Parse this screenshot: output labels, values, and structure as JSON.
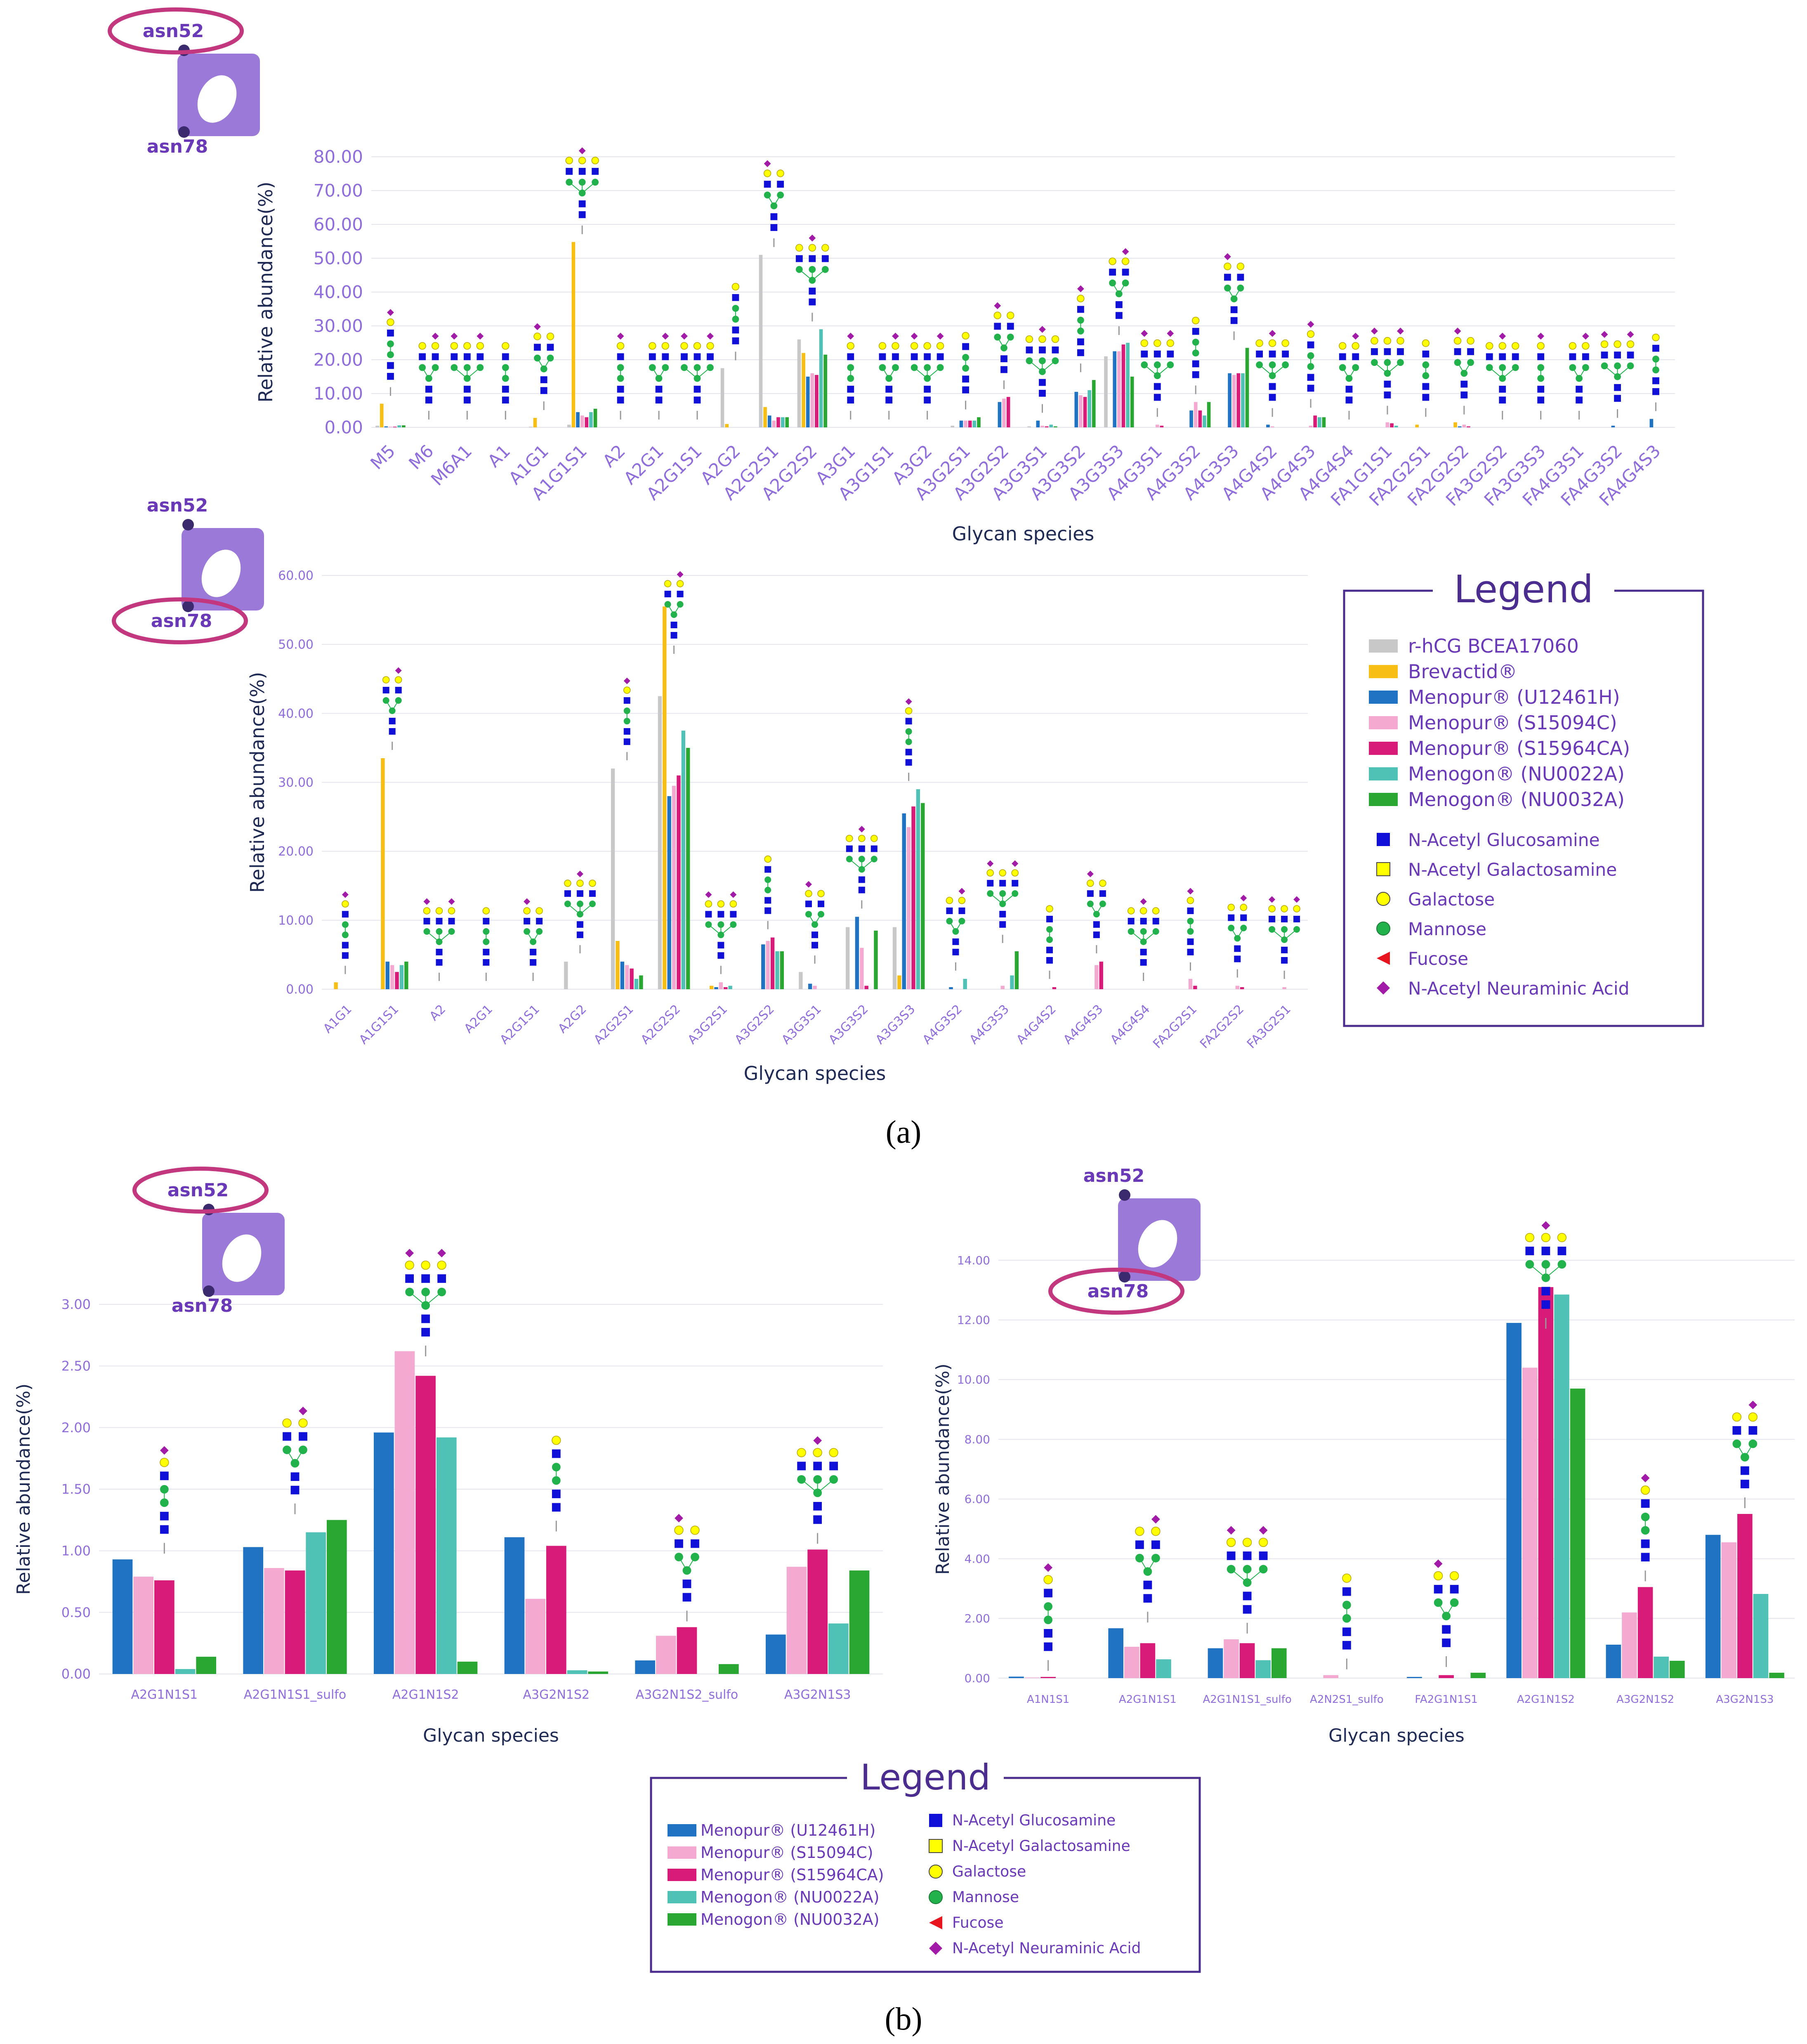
{
  "panel_labels": {
    "a": "(a)",
    "b": "(b)"
  },
  "site_labels": {
    "asn52": "asn52",
    "asn78": "asn78"
  },
  "colors": {
    "axis_text": "#8f6ddb",
    "tick_text": "#8f6ddb",
    "title_text": "#1f2a55",
    "legend_border": "#4b2d8f",
    "legend_title": "#4b2d8f",
    "ellipse": "#c2377e",
    "logo": "#9a79d8",
    "grid": "#e4e4ee"
  },
  "legend_a": {
    "title": "Legend",
    "series": [
      {
        "name": "r-hCG BCEA17060",
        "color": "#c8c8c8"
      },
      {
        "name": "Brevactid®",
        "color": "#f7be16"
      },
      {
        "name": "Menopur® (U12461H)",
        "color": "#1f73c2"
      },
      {
        "name": "Menopur® (S15094C)",
        "color": "#f4a9d1"
      },
      {
        "name": "Menopur® (S15964CA)",
        "color": "#d81b78"
      },
      {
        "name": "Menogon® (NU0022A)",
        "color": "#4fc1b5"
      },
      {
        "name": "Menogon® (NU0032A)",
        "color": "#2aa732"
      }
    ],
    "symbols": [
      {
        "name": "N-Acetyl Glucosamine",
        "shape": "square",
        "color": "#1010d8"
      },
      {
        "name": "N-Acetyl Galactosamine",
        "shape": "square-yellow",
        "color": "#ffff00"
      },
      {
        "name": "Galactose",
        "shape": "circle",
        "color": "#ffff00"
      },
      {
        "name": "Mannose",
        "shape": "circle",
        "color": "#22b24c"
      },
      {
        "name": "Fucose",
        "shape": "triangle",
        "color": "#e8141e"
      },
      {
        "name": "N-Acetyl Neuraminic Acid",
        "shape": "diamond",
        "color": "#a21aa8"
      }
    ]
  },
  "legend_b": {
    "title": "Legend",
    "series": [
      {
        "name": "Menopur® (U12461H)",
        "color": "#1f73c2"
      },
      {
        "name": "Menopur® (S15094C)",
        "color": "#f4a9d1"
      },
      {
        "name": "Menopur® (S15964CA)",
        "color": "#d81b78"
      },
      {
        "name": "Menogon® (NU0022A)",
        "color": "#4fc1b5"
      },
      {
        "name": "Menogon® (NU0032A)",
        "color": "#2aa732"
      }
    ],
    "symbols": [
      {
        "name": "N-Acetyl Glucosamine",
        "shape": "square",
        "color": "#1010d8"
      },
      {
        "name": "N-Acetyl Galactosamine",
        "shape": "square-yellow",
        "color": "#ffff00"
      },
      {
        "name": "Galactose",
        "shape": "circle",
        "color": "#ffff00"
      },
      {
        "name": "Mannose",
        "shape": "circle",
        "color": "#22b24c"
      },
      {
        "name": "Fucose",
        "shape": "triangle",
        "color": "#e8141e"
      },
      {
        "name": "N-Acetyl Neuraminic Acid",
        "shape": "diamond",
        "color": "#a21aa8"
      }
    ]
  },
  "chart_data": [
    {
      "id": "a-asn52",
      "type": "bar",
      "title": "",
      "xlabel": "Glycan species",
      "ylabel": "Relative abundance(%)",
      "ylim": [
        0,
        80
      ],
      "yticks": [
        "0.00",
        "10.00",
        "20.00",
        "30.00",
        "40.00",
        "50.00",
        "60.00",
        "70.00",
        "80.00"
      ],
      "series_names": [
        "r-hCG BCEA17060",
        "Brevactid®",
        "Menopur® (U12461H)",
        "Menopur® (S15094C)",
        "Menopur® (S15964CA)",
        "Menogon® (NU0022A)",
        "Menogon® (NU0032A)"
      ],
      "categories": [
        "M5",
        "M6",
        "M6A1",
        "A1",
        "A1G1",
        "A1G1S1",
        "A2",
        "A2G1",
        "A2G1S1",
        "A2G2",
        "A2G2S1",
        "A2G2S2",
        "A3G1",
        "A3G1S1",
        "A3G2",
        "A3G2S1",
        "A3G2S2",
        "A3G3S1",
        "A3G3S2",
        "A3G3S3",
        "A4G3S1",
        "A4G3S2",
        "A4G3S3",
        "A4G4S2",
        "A4G4S3",
        "A4G4S4",
        "FA1G1S1",
        "FA2G2S1",
        "FA2G2S2",
        "FA3G2S2",
        "FA3G3S3",
        "FA4G3S1",
        "FA4G3S2",
        "FA4G4S3"
      ],
      "values": [
        [
          0.5,
          7.0,
          0.3,
          0.2,
          0.2,
          0.6,
          0.6
        ],
        [
          0,
          0,
          0,
          0,
          0,
          0,
          0
        ],
        [
          0,
          0,
          0,
          0,
          0,
          0,
          0
        ],
        [
          0,
          0,
          0,
          0,
          0,
          0,
          0
        ],
        [
          0.2,
          2.8,
          0,
          0,
          0,
          0,
          0
        ],
        [
          0.8,
          54.8,
          4.5,
          3.5,
          3.0,
          4.5,
          5.5
        ],
        [
          0,
          0,
          0,
          0,
          0,
          0,
          0
        ],
        [
          0,
          0,
          0,
          0,
          0,
          0,
          0
        ],
        [
          0,
          0,
          0,
          0,
          0,
          0,
          0
        ],
        [
          17.5,
          1.0,
          0,
          0,
          0,
          0,
          0
        ],
        [
          51.0,
          6.0,
          3.5,
          2.0,
          3.0,
          3.0,
          3.0
        ],
        [
          26.0,
          22.0,
          15.0,
          16.0,
          15.5,
          29.0,
          21.5
        ],
        [
          0,
          0,
          0,
          0,
          0,
          0,
          0
        ],
        [
          0,
          0,
          0,
          0,
          0,
          0,
          0
        ],
        [
          0,
          0,
          0,
          0,
          0,
          0,
          0
        ],
        [
          0.5,
          0,
          2.0,
          2.0,
          2.0,
          2.0,
          3.0
        ],
        [
          0,
          0,
          7.5,
          8.5,
          9.0,
          0,
          0
        ],
        [
          0.3,
          0,
          2.0,
          0.5,
          0.3,
          0.8,
          0.3
        ],
        [
          0,
          0,
          10.5,
          9.5,
          9.0,
          11.0,
          14.0
        ],
        [
          21.0,
          0,
          22.5,
          22.5,
          24.5,
          25.0,
          15.0
        ],
        [
          0,
          0,
          0,
          0.8,
          0.5,
          0,
          0
        ],
        [
          0,
          0,
          5.0,
          7.5,
          5.0,
          3.5,
          7.5
        ],
        [
          0,
          0,
          16.0,
          15.5,
          16.0,
          16.0,
          23.5
        ],
        [
          0,
          0,
          0.8,
          0.3,
          0,
          0,
          0
        ],
        [
          0,
          0,
          0,
          0.5,
          3.5,
          3.0,
          3.0
        ],
        [
          0,
          0,
          0,
          0,
          0,
          0,
          0
        ],
        [
          0,
          0,
          0,
          1.5,
          1.2,
          0.5,
          0
        ],
        [
          0,
          0.8,
          0,
          0,
          0,
          0,
          0
        ],
        [
          0,
          1.5,
          0.3,
          0.8,
          0.3,
          0,
          0
        ],
        [
          0,
          0,
          0,
          0,
          0,
          0,
          0
        ],
        [
          0,
          0,
          0,
          0,
          0,
          0,
          0
        ],
        [
          0,
          0,
          0,
          0,
          0,
          0,
          0
        ],
        [
          0,
          0,
          0.5,
          0,
          0,
          0,
          0
        ],
        [
          0,
          0,
          2.5,
          0,
          0,
          0,
          0
        ]
      ]
    },
    {
      "id": "a-asn78",
      "type": "bar",
      "title": "",
      "xlabel": "Glycan species",
      "ylabel": "Relative abundance(%)",
      "ylim": [
        0,
        60
      ],
      "yticks": [
        "0.00",
        "10.00",
        "20.00",
        "30.00",
        "40.00",
        "50.00",
        "60.00"
      ],
      "series_names": [
        "r-hCG BCEA17060",
        "Brevactid®",
        "Menopur® (U12461H)",
        "Menopur® (S15094C)",
        "Menopur® (S15964CA)",
        "Menogon® (NU0022A)",
        "Menogon® (NU0032A)"
      ],
      "categories": [
        "A1G1",
        "A1G1S1",
        "A2",
        "A2G1",
        "A2G1S1",
        "A2G2",
        "A2G2S1",
        "A2G2S2",
        "A3G2S1",
        "A3G2S2",
        "A3G3S1",
        "A3G3S2",
        "A3G3S3",
        "A4G3S2",
        "A4G3S3",
        "A4G4S2",
        "A4G4S3",
        "A4G4S4",
        "FA2G2S1",
        "FA2G2S2",
        "FA3G2S1"
      ],
      "values": [
        [
          0,
          1.0,
          0,
          0,
          0,
          0,
          0
        ],
        [
          0,
          33.5,
          4.0,
          3.5,
          2.5,
          3.5,
          4.0
        ],
        [
          0,
          0,
          0,
          0,
          0,
          0,
          0
        ],
        [
          0,
          0,
          0,
          0,
          0,
          0,
          0
        ],
        [
          0,
          0,
          0,
          0,
          0,
          0,
          0
        ],
        [
          4.0,
          0,
          0,
          0,
          0,
          0,
          0
        ],
        [
          32.0,
          7.0,
          4.0,
          3.5,
          3.0,
          1.5,
          2.0
        ],
        [
          42.5,
          55.5,
          28.0,
          29.5,
          31.0,
          37.5,
          35.0
        ],
        [
          0,
          0.5,
          0.3,
          1.0,
          0.3,
          0.5,
          0
        ],
        [
          0,
          0,
          6.5,
          7.0,
          7.5,
          5.5,
          5.5
        ],
        [
          2.5,
          0,
          0.8,
          0.5,
          0,
          0,
          0
        ],
        [
          9.0,
          0,
          10.5,
          6.0,
          0.5,
          0,
          8.5
        ],
        [
          9.0,
          2.0,
          25.5,
          23.5,
          26.5,
          29.0,
          27.0
        ],
        [
          0,
          0,
          0.3,
          0,
          0,
          1.5,
          0
        ],
        [
          0,
          0,
          0,
          0.5,
          0,
          2.0,
          5.5
        ],
        [
          0,
          0,
          0,
          0,
          0.3,
          0,
          0
        ],
        [
          0,
          0,
          0,
          3.5,
          4.0,
          0,
          0
        ],
        [
          0,
          0,
          0,
          0,
          0,
          0,
          0
        ],
        [
          0,
          0,
          0,
          1.5,
          0.5,
          0,
          0
        ],
        [
          0,
          0,
          0,
          0.5,
          0.3,
          0,
          0
        ],
        [
          0,
          0,
          0,
          0.3,
          0,
          0,
          0
        ]
      ]
    },
    {
      "id": "b-asn52",
      "type": "bar",
      "title": "",
      "xlabel": "Glycan species",
      "ylabel": "Relative abundance(%)",
      "ylim": [
        0,
        3
      ],
      "yticks": [
        "0.00",
        "0.50",
        "1.00",
        "1.50",
        "2.00",
        "2.50",
        "3.00"
      ],
      "series_names": [
        "Menopur® (U12461H)",
        "Menopur® (S15094C)",
        "Menopur® (S15964CA)",
        "Menogon® (NU0022A)",
        "Menogon® (NU0032A)"
      ],
      "categories": [
        "A2G1N1S1",
        "A2G1N1S1_sulfo",
        "A2G1N1S2",
        "A3G2N1S2",
        "A3G2N1S2_sulfo",
        "A3G2N1S3"
      ],
      "values": [
        [
          0.93,
          0.79,
          0.76,
          0.04,
          0.14
        ],
        [
          1.03,
          0.86,
          0.84,
          1.15,
          1.25
        ],
        [
          1.96,
          2.62,
          2.42,
          1.92,
          0.1
        ],
        [
          1.11,
          0.61,
          1.04,
          0.03,
          0.02
        ],
        [
          0.11,
          0.31,
          0.38,
          0,
          0.08
        ],
        [
          0.32,
          0.87,
          1.01,
          0.41,
          0.84
        ]
      ]
    },
    {
      "id": "b-asn78",
      "type": "bar",
      "title": "",
      "xlabel": "Glycan species",
      "ylabel": "Relative abundance(%)",
      "ylim": [
        0,
        14
      ],
      "yticks": [
        "0.00",
        "2.00",
        "4.00",
        "6.00",
        "8.00",
        "10.00",
        "12.00",
        "14.00"
      ],
      "series_names": [
        "Menopur® (U12461H)",
        "Menopur® (S15094C)",
        "Menopur® (S15964CA)",
        "Menogon® (NU0022A)",
        "Menogon® (NU0032A)"
      ],
      "categories": [
        "A1N1S1",
        "A2G1N1S1",
        "A2G1N1S1_sulfo",
        "A2N2S1_sulfo",
        "FA2G1N1S1",
        "A2G1N1S2",
        "A3G2N1S2",
        "A3G2N1S3"
      ],
      "values": [
        [
          0.05,
          0.02,
          0.04,
          0,
          0
        ],
        [
          1.67,
          1.05,
          1.17,
          0.63,
          0
        ],
        [
          1.0,
          1.3,
          1.17,
          0.6,
          1.0
        ],
        [
          0,
          0.1,
          0,
          0,
          0
        ],
        [
          0.04,
          0,
          0.1,
          0,
          0.18
        ],
        [
          11.9,
          10.4,
          13.1,
          12.85,
          9.7
        ],
        [
          1.12,
          2.2,
          3.05,
          0.72,
          0.58
        ],
        [
          4.8,
          4.55,
          5.5,
          2.82,
          0.18
        ]
      ]
    }
  ]
}
